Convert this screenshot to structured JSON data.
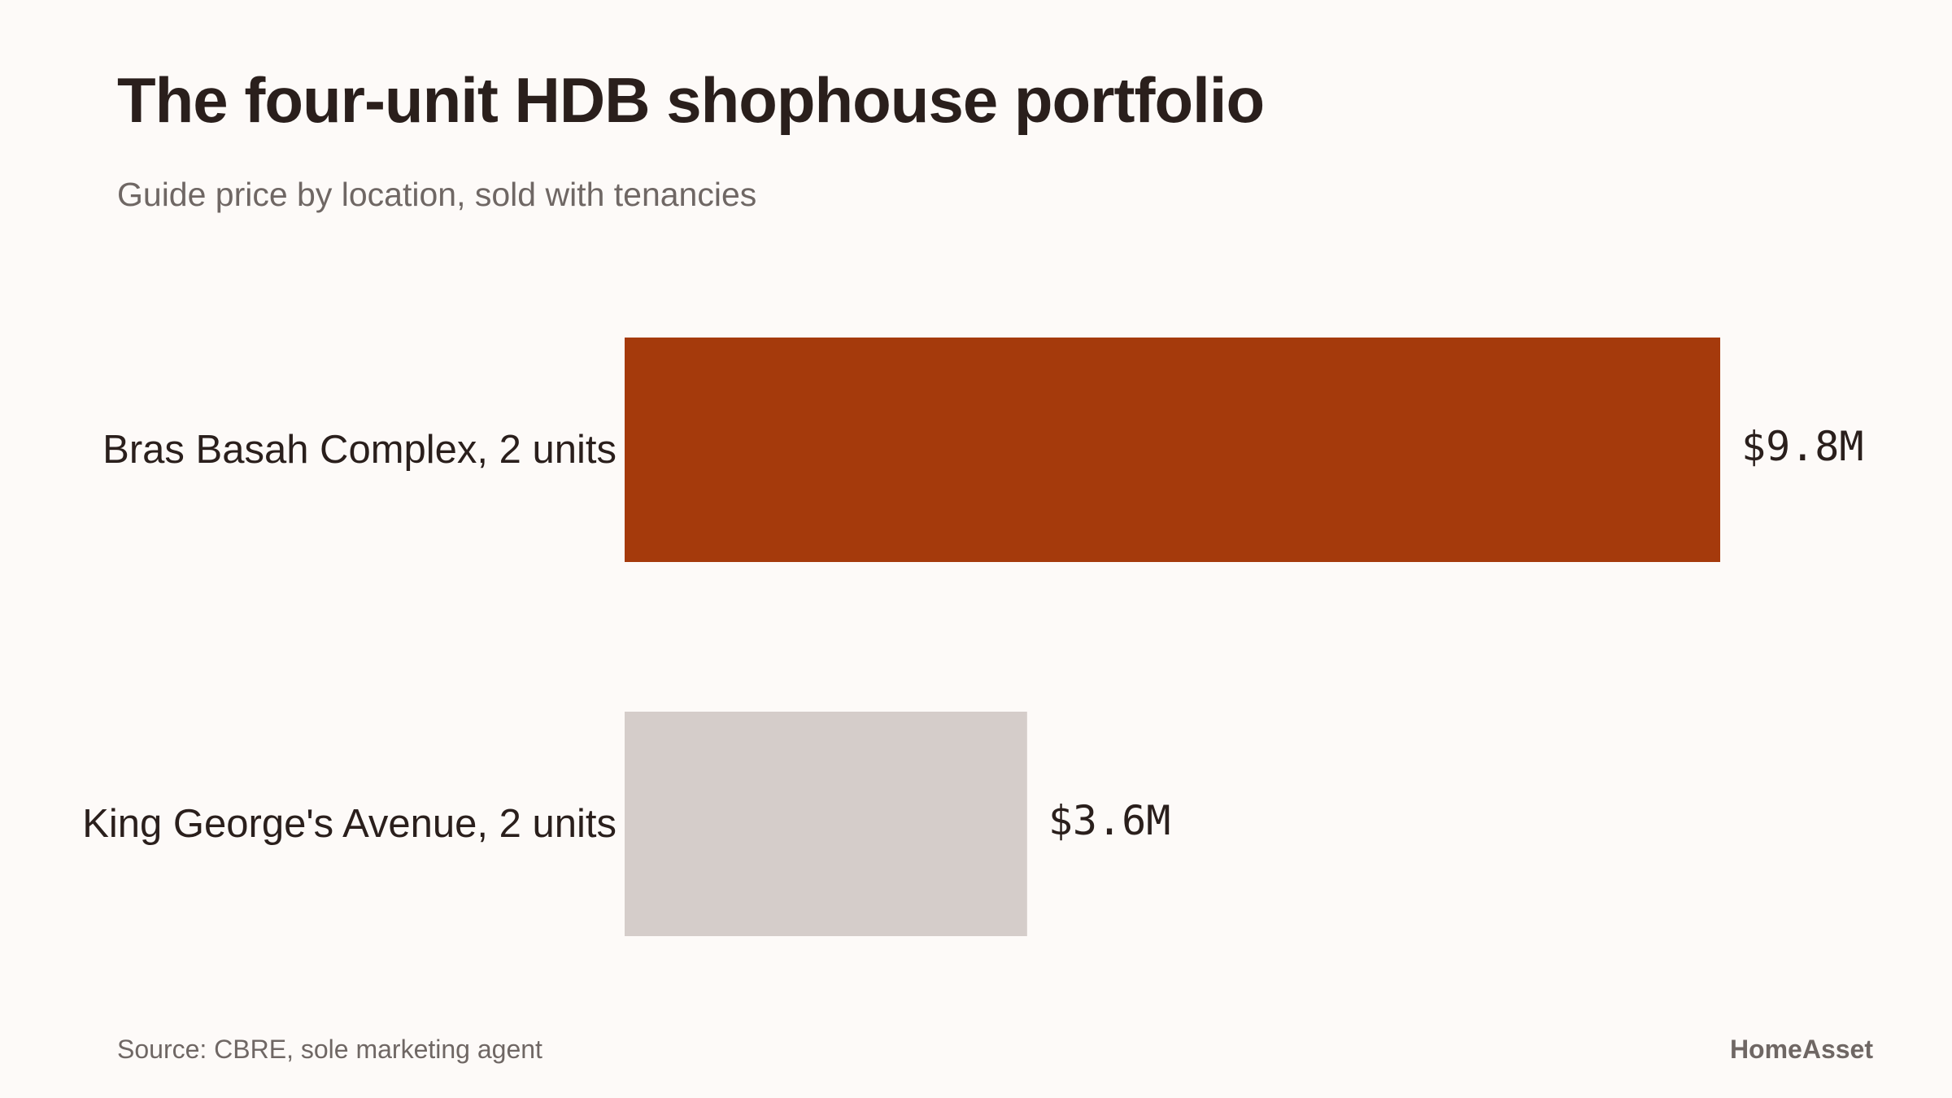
{
  "header": {
    "title": "The four-unit HDB shophouse portfolio",
    "subtitle": "Guide price by location, sold with tenancies"
  },
  "footer": {
    "source": "Source: CBRE, sole marketing agent",
    "brand": "HomeAsset"
  },
  "chart_data": {
    "type": "bar",
    "orientation": "horizontal",
    "title": "The four-unit HDB shophouse portfolio",
    "subtitle": "Guide price by location, sold with tenancies",
    "categories": [
      "Bras Basah Complex, 2 units",
      "King George's Avenue, 2 units"
    ],
    "values": [
      9.8,
      3.6
    ],
    "value_labels": [
      "$9.8M",
      "$3.6M"
    ],
    "unit": "$M",
    "xlim": [
      0,
      9.8
    ],
    "grid": false,
    "legend": "none",
    "colors": [
      "#a53a0c",
      "#d5cdca"
    ]
  }
}
